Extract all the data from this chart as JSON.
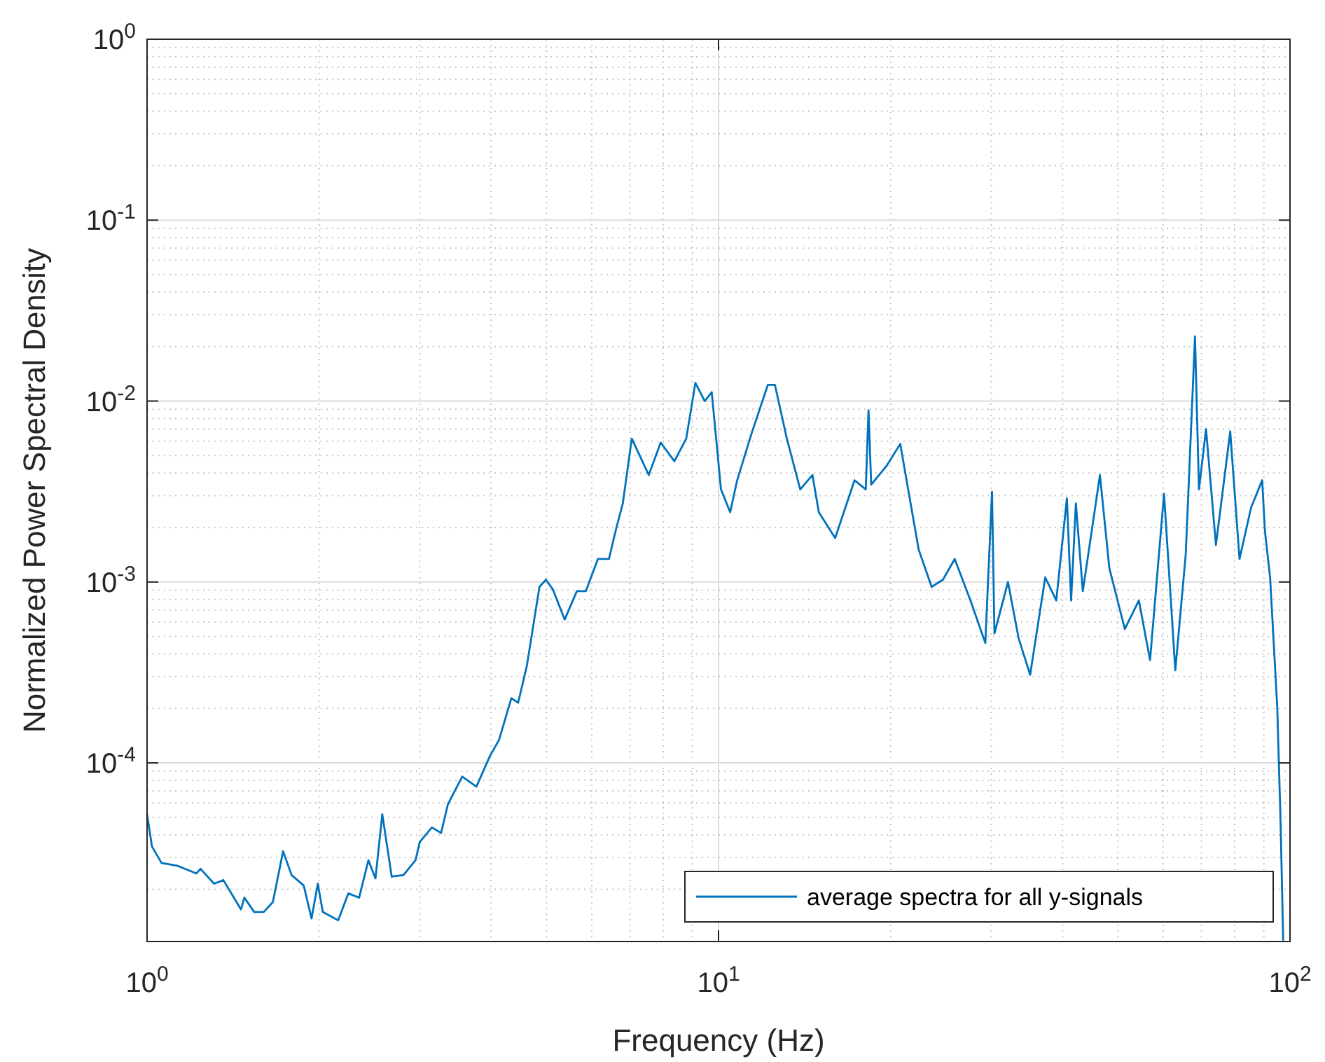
{
  "chart_data": {
    "type": "line",
    "xlabel": "Frequency (Hz)",
    "ylabel": "Normalized Power Spectral Density",
    "log": "xy",
    "grid": true,
    "legend": "bottom right",
    "xlim": [
      1,
      100
    ],
    "ylim": [
      1.03e-05,
      1
    ],
    "xticks": [
      {
        "value": 1,
        "label": "10$^{0}$"
      },
      {
        "value": 10,
        "label": "10$^{1}$"
      },
      {
        "value": 100,
        "label": "10$^{2}$"
      }
    ],
    "yticks": [
      {
        "value": 0.0001,
        "label": "10$^{-4}$"
      },
      {
        "value": 0.001,
        "label": "10$^{-3}$"
      },
      {
        "value": 0.01,
        "label": "10$^{-2}$"
      },
      {
        "value": 0.1,
        "label": "10$^{-1}$"
      },
      {
        "value": 1,
        "label": "10$^{0}$"
      }
    ],
    "series": [
      {
        "name": "average spectra for all y-signals",
        "color": "#0072bd",
        "x": [
          1,
          1.02,
          1.06,
          1.13,
          1.22,
          1.24,
          1.31,
          1.36,
          1.46,
          1.48,
          1.54,
          1.6,
          1.66,
          1.73,
          1.79,
          1.88,
          1.94,
          1.99,
          2.03,
          2.16,
          2.25,
          2.35,
          2.44,
          2.51,
          2.58,
          2.68,
          2.81,
          2.95,
          3,
          3.15,
          3.27,
          3.36,
          3.56,
          3.77,
          3.98,
          4.13,
          4.34,
          4.46,
          4.62,
          4.86,
          4.99,
          5.13,
          5.38,
          5.65,
          5.86,
          6.15,
          6.43,
          6.62,
          6.8,
          7.05,
          7.55,
          7.92,
          8.37,
          8.78,
          9.11,
          9.46,
          9.73,
          10.1,
          10.48,
          10.78,
          11.42,
          12.2,
          12.55,
          13.17,
          13.9,
          14.6,
          14.98,
          16,
          17.3,
          18.1,
          18.3,
          18.5,
          19.7,
          20.8,
          21.4,
          22.4,
          23.6,
          24.7,
          25.9,
          27.6,
          29.3,
          30.1,
          30.4,
          32.1,
          33.5,
          35.1,
          37.3,
          39,
          40.7,
          41.4,
          42.2,
          43.4,
          46.5,
          48.3,
          51.4,
          54.4,
          56.9,
          60.2,
          63,
          65.7,
          68.2,
          69.3,
          71.3,
          74.2,
          78.6,
          81.6,
          85.5,
          89.4,
          90.4,
          92.3,
          95,
          96.3,
          97.3
        ],
        "values": [
          5.2e-05,
          3.45e-05,
          2.8e-05,
          2.7e-05,
          2.45e-05,
          2.6e-05,
          2.15e-05,
          2.25e-05,
          1.55e-05,
          1.8e-05,
          1.5e-05,
          1.5e-05,
          1.7e-05,
          3.25e-05,
          2.4e-05,
          2.1e-05,
          1.38e-05,
          2.15e-05,
          1.5e-05,
          1.35e-05,
          1.9e-05,
          1.8e-05,
          2.9e-05,
          2.3e-05,
          5.2e-05,
          2.35e-05,
          2.4e-05,
          2.9e-05,
          3.65e-05,
          4.4e-05,
          4.1e-05,
          5.9e-05,
          8.4e-05,
          7.4e-05,
          0.000109,
          0.000134,
          0.000228,
          0.000215,
          0.000345,
          0.00094,
          0.00103,
          0.00091,
          0.00062,
          0.00089,
          0.00089,
          0.00134,
          0.00134,
          0.00197,
          0.00272,
          0.0062,
          0.0039,
          0.0059,
          0.00465,
          0.0062,
          0.0126,
          0.01,
          0.0112,
          0.00325,
          0.00243,
          0.00365,
          0.0066,
          0.0123,
          0.0123,
          0.0062,
          0.00325,
          0.0039,
          0.00243,
          0.00175,
          0.00365,
          0.00325,
          0.0089,
          0.00345,
          0.0044,
          0.0058,
          0.00345,
          0.00151,
          0.00094,
          0.00103,
          0.00134,
          0.00079,
          0.00046,
          0.00315,
          0.00052,
          0.001,
          0.00049,
          0.000307,
          0.00106,
          0.00079,
          0.0029,
          0.00079,
          0.00272,
          0.00089,
          0.0039,
          0.00119,
          0.00055,
          0.00079,
          0.00037,
          0.00307,
          0.000325,
          0.00142,
          0.0228,
          0.00325,
          0.007,
          0.0016,
          0.0068,
          0.00134,
          0.00258,
          0.00365,
          0.00191,
          0.00106,
          0.000203,
          4.6e-05,
          1.05e-05
        ]
      }
    ]
  }
}
